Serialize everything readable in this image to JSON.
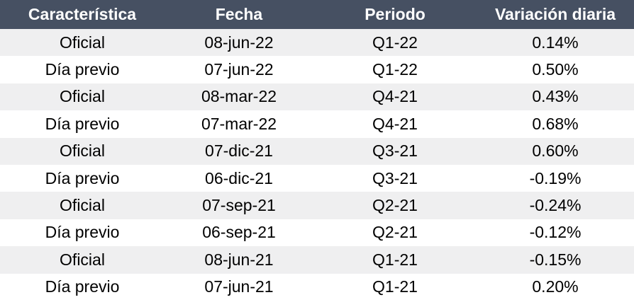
{
  "table": {
    "headers": [
      "Característica",
      "Fecha",
      "Periodo",
      "Variación diaria"
    ],
    "rows": [
      [
        "Oficial",
        "08-jun-22",
        "Q1-22",
        "0.14%"
      ],
      [
        "Día previo",
        "07-jun-22",
        "Q1-22",
        "0.50%"
      ],
      [
        "Oficial",
        "08-mar-22",
        "Q4-21",
        "0.43%"
      ],
      [
        "Día previo",
        "07-mar-22",
        "Q4-21",
        "0.68%"
      ],
      [
        "Oficial",
        "07-dic-21",
        "Q3-21",
        "0.60%"
      ],
      [
        "Día previo",
        "06-dic-21",
        "Q3-21",
        "-0.19%"
      ],
      [
        "Oficial",
        "07-sep-21",
        "Q2-21",
        "-0.24%"
      ],
      [
        "Día previo",
        "06-sep-21",
        "Q2-21",
        "-0.12%"
      ],
      [
        "Oficial",
        "08-jun-21",
        "Q1-21",
        "-0.15%"
      ],
      [
        "Día previo",
        "07-jun-21",
        "Q1-21",
        "0.20%"
      ]
    ]
  },
  "colors": {
    "header_bg": "#465062",
    "header_text": "#ffffff",
    "band_shaded": "#efeff0",
    "band_plain": "#ffffff"
  }
}
